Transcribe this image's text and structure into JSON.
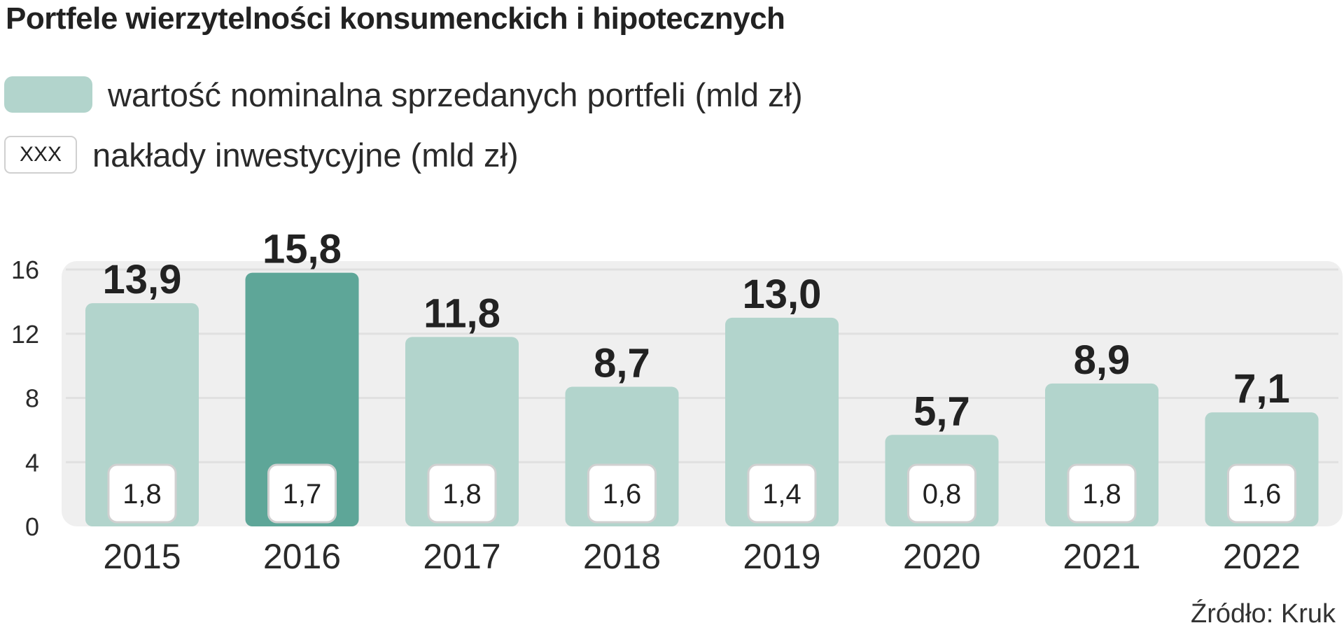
{
  "title": "Portfele wierzytelności konsumenckich i hipotecznych",
  "legend": {
    "fill_label": "wartość nominalna sprzedanych portfeli (mld zł)",
    "box_sample": "XXX",
    "box_label": "nakłady inwestycyjne (mld zł)"
  },
  "source": "Źródło:  Kruk",
  "colors": {
    "bar": "#b2d4cc",
    "bar_highlight": "#5ea698",
    "plot_background": "#efefef",
    "grid": "#e0e0e0",
    "text": "#222222"
  },
  "chart_data": {
    "type": "bar",
    "categories": [
      "2015",
      "2016",
      "2017",
      "2018",
      "2019",
      "2020",
      "2021",
      "2022"
    ],
    "series": [
      {
        "name": "wartość nominalna sprzedanych portfeli (mld zł)",
        "values": [
          13.9,
          15.8,
          11.8,
          8.7,
          13.0,
          5.7,
          8.9,
          7.1
        ],
        "labels": [
          "13,9",
          "15,8",
          "11,8",
          "8,7",
          "13,0",
          "5,7",
          "8,9",
          "7,1"
        ]
      },
      {
        "name": "nakłady inwestycyjne (mld zł)",
        "values": [
          1.8,
          1.7,
          1.8,
          1.6,
          1.4,
          0.8,
          1.8,
          1.6
        ],
        "labels": [
          "1,8",
          "1,7",
          "1,8",
          "1,6",
          "1,4",
          "0,8",
          "1,8",
          "1,6"
        ]
      }
    ],
    "highlight_category": "2016",
    "yticks": [
      0,
      4,
      8,
      12,
      16
    ],
    "ylim": [
      0,
      16
    ],
    "grid": true,
    "xlabel": "",
    "ylabel": ""
  }
}
